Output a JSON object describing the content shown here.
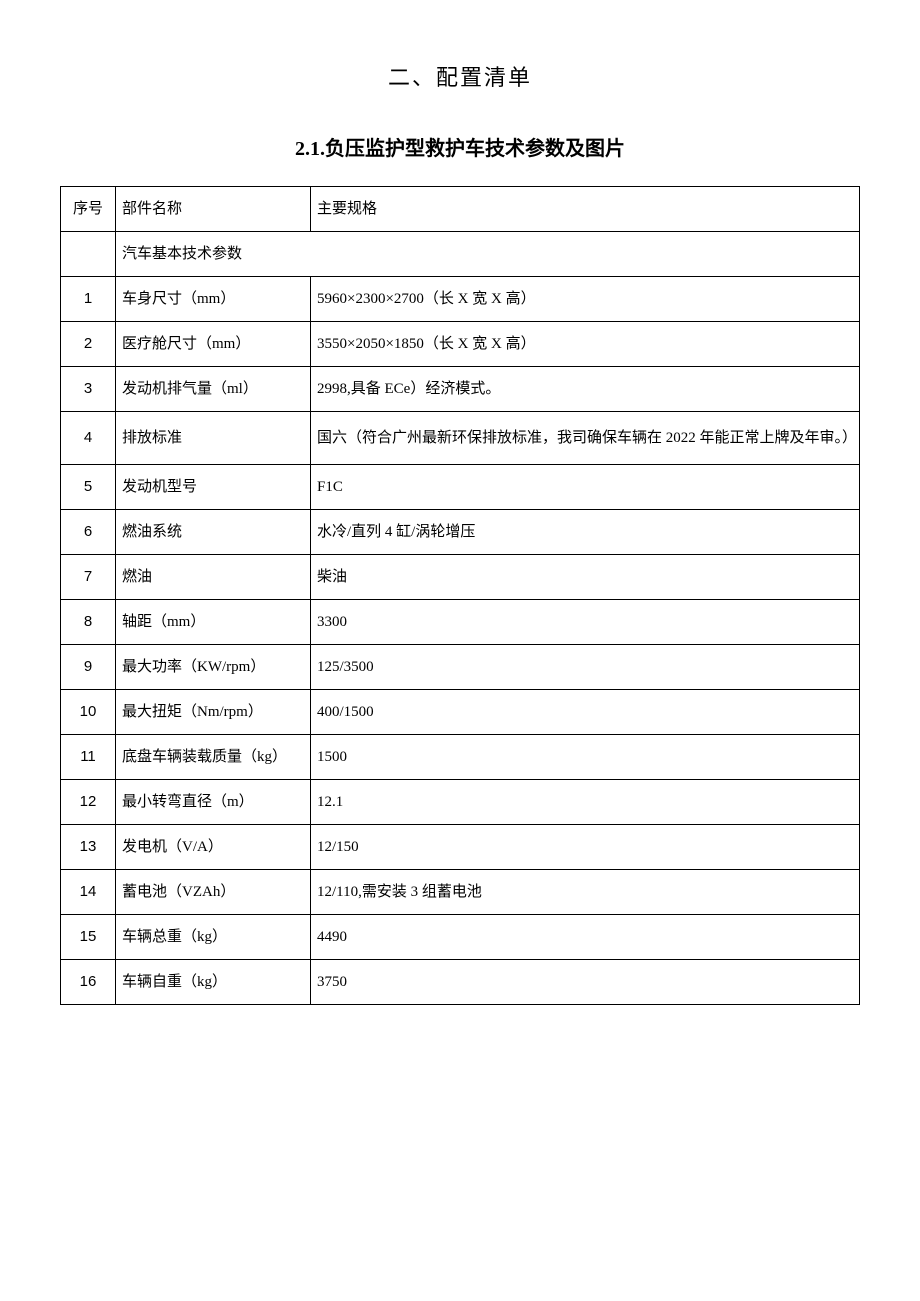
{
  "title_main": "二、配置清单",
  "title_sub": "2.1.负压监护型救护车技术参数及图片",
  "header": {
    "col_index": "序号",
    "col_name": "部件名称",
    "col_spec": "主要规格"
  },
  "section_label": "汽车基本技术参数",
  "rows": [
    {
      "idx": "1",
      "name": "车身尺寸（mm）",
      "spec": "5960×2300×2700（长 X 宽 X 高）"
    },
    {
      "idx": "2",
      "name": "医疗舱尺寸（mm）",
      "spec": "3550×2050×1850（长 X 宽 X 高）"
    },
    {
      "idx": "3",
      "name": "发动机排气量（ml）",
      "spec": "2998,具备 ECe）经济模式。"
    },
    {
      "idx": "4",
      "name": "排放标准",
      "spec": "国六（符合广州最新环保排放标准，我司确保车辆在 2022 年能正常上牌及年审。）"
    },
    {
      "idx": "5",
      "name": "发动机型号",
      "spec": "F1C"
    },
    {
      "idx": "6",
      "name": "燃油系统",
      "spec": "水冷/直列 4 缸/涡轮增压"
    },
    {
      "idx": "7",
      "name": "燃油",
      "spec": "柴油"
    },
    {
      "idx": "8",
      "name": "轴距（mm）",
      "spec": "3300"
    },
    {
      "idx": "9",
      "name": "最大功率（KW/rpm）",
      "spec": "125/3500"
    },
    {
      "idx": "10",
      "name": "最大扭矩（Nm/rpm）",
      "spec": "400/1500"
    },
    {
      "idx": "11",
      "name": "底盘车辆装载质量（kg）",
      "spec": "1500"
    },
    {
      "idx": "12",
      "name": "最小转弯直径（m）",
      "spec": "12.1"
    },
    {
      "idx": "13",
      "name": "发电机（V/A）",
      "spec": "12/150"
    },
    {
      "idx": "14",
      "name": "蓄电池（VZAh）",
      "spec": "12/110,需安装 3 组蓄电池"
    },
    {
      "idx": "15",
      "name": "车辆总重（kg）",
      "spec": "4490"
    },
    {
      "idx": "16",
      "name": "车辆自重（kg）",
      "spec": "3750"
    }
  ],
  "style": {
    "page_bg": "#ffffff",
    "border_color": "#000000",
    "title_fontsize": 22,
    "subtitle_fontsize": 20,
    "cell_fontsize": 15,
    "col_widths": {
      "index": 55,
      "name": 195
    }
  }
}
